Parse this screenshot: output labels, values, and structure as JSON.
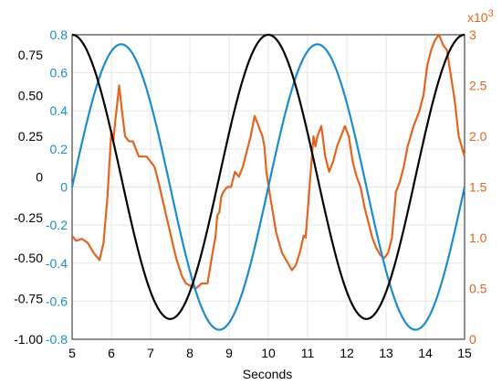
{
  "chart_data": {
    "type": "line",
    "xlabel": "Seconds",
    "xlim": [
      5,
      15
    ],
    "x_ticks": [
      "5",
      "6",
      "7",
      "8",
      "9",
      "10",
      "11",
      "12",
      "13",
      "14",
      "15"
    ],
    "grid": true,
    "axes": {
      "left_outer": {
        "color": "#000000",
        "ylim": [
          -1.0,
          0.875
        ],
        "ticks": [
          {
            "v": 0.75,
            "label": "0.75"
          },
          {
            "v": 0.5,
            "label": "0.50"
          },
          {
            "v": 0.25,
            "label": "0.25"
          },
          {
            "v": 0.0,
            "label": "0"
          },
          {
            "v": -0.25,
            "label": "-0.25"
          },
          {
            "v": -0.5,
            "label": "-0.50"
          },
          {
            "v": -0.75,
            "label": "-0.75"
          },
          {
            "v": -1.0,
            "label": "-1.00"
          }
        ]
      },
      "left_inner": {
        "color": "#1a8ccf",
        "ylim": [
          -0.8,
          0.8
        ],
        "ticks": [
          {
            "v": 0.8,
            "label": "0.8"
          },
          {
            "v": 0.6,
            "label": "0.6"
          },
          {
            "v": 0.4,
            "label": "0.4"
          },
          {
            "v": 0.2,
            "label": "0.2"
          },
          {
            "v": 0.0,
            "label": "0"
          },
          {
            "v": -0.2,
            "label": "-0.2"
          },
          {
            "v": -0.4,
            "label": "-0.4"
          },
          {
            "v": -0.6,
            "label": "-0.6"
          },
          {
            "v": -0.8,
            "label": "-0.8"
          }
        ]
      },
      "right": {
        "color": "#e3641e",
        "ylim": [
          0,
          3.0
        ],
        "multiplier": "x10",
        "multiplier_exp": "3",
        "ticks": [
          {
            "v": 3.0,
            "label": "3"
          },
          {
            "v": 2.5,
            "label": "2.5"
          },
          {
            "v": 2.0,
            "label": "2.0"
          },
          {
            "v": 1.5,
            "label": "1.5"
          },
          {
            "v": 1.0,
            "label": "1.0"
          },
          {
            "v": 0.5,
            "label": "0.5"
          },
          {
            "v": 0.0,
            "label": "0"
          }
        ]
      }
    },
    "series": [
      {
        "axis": "left_inner",
        "color": "#1a8ccf",
        "function": "sine",
        "amplitude": 0.75,
        "period": 5,
        "phase_start": 5
      },
      {
        "axis": "left_outer",
        "color": "#000000",
        "function": "cosine",
        "amplitude": 0.875,
        "period": 5,
        "phase_start": 5
      },
      {
        "axis": "right",
        "color": "#e3641e",
        "x": [
          5.0,
          5.1,
          5.25,
          5.4,
          5.55,
          5.7,
          5.8,
          5.9,
          6.0,
          6.05,
          6.1,
          6.2,
          6.27,
          6.35,
          6.45,
          6.55,
          6.7,
          6.78,
          6.9,
          7.1,
          7.2,
          7.35,
          7.5,
          7.65,
          7.8,
          7.9,
          8.05,
          8.15,
          8.3,
          8.45,
          8.6,
          8.65,
          8.7,
          8.75,
          8.8,
          8.85,
          8.95,
          9.05,
          9.15,
          9.25,
          9.35,
          9.45,
          9.55,
          9.65,
          9.75,
          9.85,
          9.9,
          9.95,
          10.05,
          10.2,
          10.35,
          10.5,
          10.6,
          10.7,
          10.8,
          10.9,
          10.95,
          11.05,
          11.15,
          11.2,
          11.25,
          11.3,
          11.35,
          11.45,
          11.55,
          11.65,
          11.75,
          11.85,
          11.95,
          12.05,
          12.15,
          12.25,
          12.35,
          12.45,
          12.55,
          12.65,
          12.75,
          12.85,
          12.95,
          13.05,
          13.15,
          13.25,
          13.35,
          13.45,
          13.55,
          13.7,
          13.85,
          13.95,
          14.05,
          14.15,
          14.25,
          14.35,
          14.45,
          14.55,
          14.65,
          14.75,
          14.85,
          15.0
        ],
        "values": [
          1.02,
          0.97,
          0.99,
          0.95,
          0.85,
          0.78,
          0.95,
          1.4,
          2.05,
          1.95,
          2.15,
          2.5,
          2.25,
          2.0,
          1.95,
          1.95,
          1.8,
          1.8,
          1.8,
          1.7,
          1.55,
          1.3,
          1.05,
          0.8,
          0.62,
          0.55,
          0.52,
          0.5,
          0.55,
          0.55,
          0.9,
          1.0,
          1.22,
          1.25,
          1.4,
          1.45,
          1.5,
          1.5,
          1.65,
          1.6,
          1.7,
          1.85,
          2.0,
          2.2,
          2.1,
          2.0,
          1.9,
          1.65,
          1.4,
          1.05,
          0.85,
          0.75,
          0.68,
          0.73,
          0.85,
          1.02,
          1.0,
          1.5,
          2.0,
          1.9,
          2.0,
          2.05,
          2.1,
          1.8,
          1.65,
          1.75,
          1.9,
          2.0,
          2.1,
          2.0,
          1.75,
          1.6,
          1.5,
          1.3,
          1.15,
          1.0,
          0.9,
          0.83,
          0.8,
          0.85,
          1.0,
          1.45,
          1.55,
          1.7,
          1.9,
          2.1,
          2.25,
          2.4,
          2.7,
          2.85,
          2.95,
          3.0,
          2.9,
          2.85,
          2.6,
          2.35,
          2.0,
          1.8
        ]
      }
    ]
  }
}
